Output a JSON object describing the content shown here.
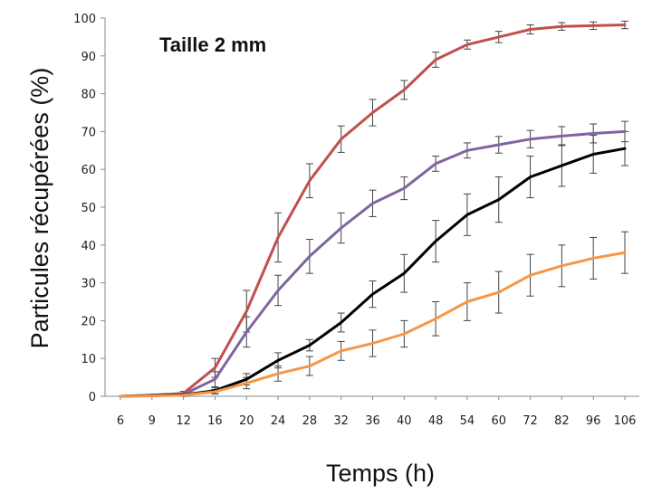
{
  "chart_data": {
    "type": "line",
    "title": "",
    "annotation": "Taille 2 mm",
    "xlabel": "Temps (h)",
    "ylabel": "Particules récupérées (%)",
    "ylim": [
      0,
      100
    ],
    "yticks": [
      "0",
      "10",
      "20",
      "30",
      "40",
      "50",
      "60",
      "70",
      "80",
      "90",
      "100"
    ],
    "categories": [
      "6",
      "9",
      "12",
      "16",
      "20",
      "24",
      "28",
      "32",
      "36",
      "40",
      "48",
      "54",
      "60",
      "72",
      "82",
      "96",
      "106"
    ],
    "grid": false,
    "legend": "none",
    "series": [
      {
        "color": "#c0504d",
        "values": [
          0,
          0.3,
          0.8,
          7.5,
          22.5,
          42,
          57,
          68,
          75,
          81,
          89,
          93,
          95,
          97,
          97.8,
          98,
          98.2
        ],
        "errors": [
          0,
          0,
          0.5,
          2.5,
          5.5,
          6.5,
          4.5,
          3.5,
          3.5,
          2.5,
          2,
          1.2,
          1.5,
          1.2,
          1,
          1,
          1
        ]
      },
      {
        "color": "#8064a2",
        "values": [
          0,
          0.3,
          0.5,
          4.5,
          17,
          28,
          37,
          44.5,
          51,
          55,
          61.5,
          65,
          66.5,
          68,
          68.8,
          69.5,
          70
        ],
        "errors": [
          0,
          0,
          0.4,
          2,
          4,
          4,
          4.5,
          4,
          3.5,
          3,
          2,
          2,
          2.2,
          2.3,
          2.5,
          2.5,
          2.7
        ]
      },
      {
        "color": "#000000",
        "values": [
          0,
          0.2,
          0.4,
          1.5,
          4.5,
          9.5,
          13.5,
          19.5,
          27,
          32.5,
          41,
          48,
          52,
          58,
          61,
          64,
          65.5
        ],
        "errors": [
          0,
          0,
          0.3,
          0.8,
          1.5,
          2,
          1.5,
          2.5,
          3.5,
          5,
          5.5,
          5.5,
          6,
          5.5,
          5.5,
          5,
          4.5
        ]
      },
      {
        "color": "#f79646",
        "values": [
          0,
          0.1,
          0.3,
          1.2,
          3.5,
          6,
          8,
          12,
          14,
          16.5,
          20.5,
          25,
          27.5,
          32,
          34.5,
          36.5,
          38
        ],
        "errors": [
          0,
          0,
          0.3,
          0.6,
          1.5,
          2,
          2.5,
          2.5,
          3.5,
          3.5,
          4.5,
          5,
          5.5,
          5.5,
          5.5,
          5.5,
          5.5
        ]
      }
    ]
  }
}
